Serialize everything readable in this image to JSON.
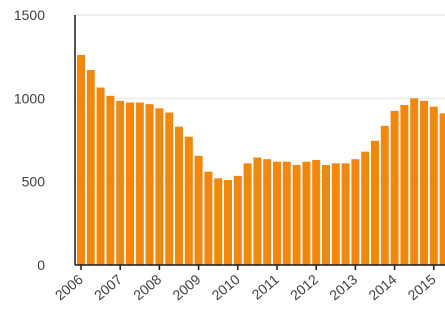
{
  "chart_data": {
    "type": "bar",
    "title": "",
    "xlabel": "",
    "ylabel": "",
    "ylim": [
      0,
      1500
    ],
    "yticks": [
      0,
      500,
      1000,
      1500
    ],
    "grid": true,
    "bar_color": "#f0880f",
    "x_tick_labels": [
      "2006",
      "2007",
      "2008",
      "2009",
      "2010",
      "2011",
      "2012",
      "2013",
      "2014",
      "2015"
    ],
    "x_start": 2006,
    "bars_per_year": 4,
    "values": [
      1260,
      1170,
      1065,
      1015,
      985,
      975,
      975,
      965,
      940,
      915,
      830,
      770,
      655,
      560,
      520,
      510,
      535,
      610,
      645,
      635,
      620,
      620,
      600,
      620,
      630,
      600,
      610,
      610,
      635,
      680,
      745,
      835,
      925,
      960,
      1000,
      985,
      950,
      910
    ]
  }
}
